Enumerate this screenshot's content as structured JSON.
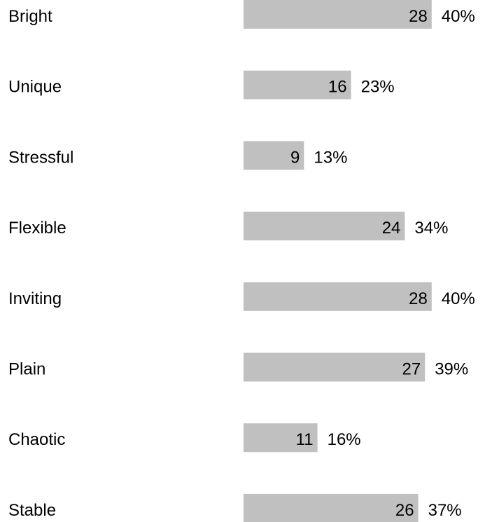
{
  "chart_data": {
    "type": "bar",
    "orientation": "horizontal",
    "categories": [
      "Bright",
      "Unique",
      "Stressful",
      "Flexible",
      "Inviting",
      "Plain",
      "Chaotic",
      "Stable"
    ],
    "values": [
      28,
      16,
      9,
      24,
      28,
      27,
      11,
      26
    ],
    "percent_labels": [
      "40%",
      "23%",
      "13%",
      "34%",
      "40%",
      "39%",
      "16%",
      "37%"
    ],
    "bar_color": "#c0c0c0",
    "grid": false,
    "legend": "none"
  }
}
